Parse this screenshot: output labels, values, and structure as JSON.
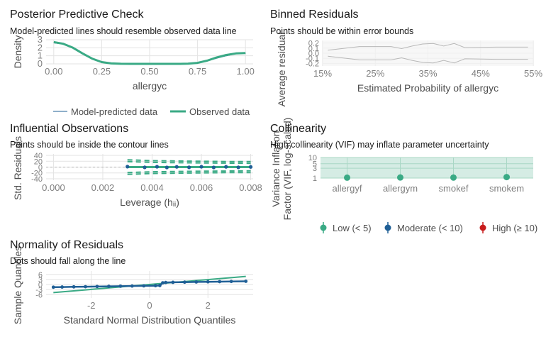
{
  "colors": {
    "green": "#3aaa85",
    "blue": "#1f5f96",
    "red": "#c81c1c",
    "grid": "#e3e3e3",
    "axis_text": "#7f7f7f",
    "title_text": "#1a1a1a",
    "vif_band": "#d5ece4",
    "vif_band_line": "#a9d7c5"
  },
  "panels": {
    "ppc": {
      "title": "Posterior Predictive Check",
      "subtitle": "Model-predicted lines should resemble observed data line",
      "xlabel": "allergyc",
      "ylabel": "Density",
      "legend": [
        "Model-predicted data",
        "Observed data"
      ]
    },
    "binned": {
      "title": "Binned Residuals",
      "subtitle": "Points should be within error bounds",
      "xlabel": "Estimated Probability of allergyc",
      "ylabel": "Average residual"
    },
    "influential": {
      "title": "Influential Observations",
      "subtitle": "Points should be inside the contour lines",
      "xlabel": "Leverage (hᵢᵢ)",
      "ylabel": "Std. Residuals"
    },
    "collinearity": {
      "title": "Collinearity",
      "subtitle": "High collinearity (VIF) may inflate parameter uncertainty",
      "ylabel_line1": "Variance Inflation",
      "ylabel_line2": "Factor (VIF, log-scaled)",
      "legend": [
        "Low (< 5)",
        "Moderate (< 10)",
        "High (≥ 10)"
      ]
    },
    "normality": {
      "title": "Normality of Residuals",
      "subtitle": "Dots should fall along the line",
      "xlabel": "Standard Normal Distribution Quantiles",
      "ylabel": "Sample Quantiles"
    }
  },
  "chart_data": [
    {
      "id": "ppc",
      "type": "line",
      "title": "Posterior Predictive Check",
      "subtitle": "Model-predicted lines should resemble observed data line",
      "xlabel": "allergyc",
      "ylabel": "Density",
      "xlim": [
        -0.04,
        1.04
      ],
      "ylim": [
        0,
        3
      ],
      "xticks": [
        0.0,
        0.25,
        0.5,
        0.75,
        1.0
      ],
      "xtick_labels": [
        "0.00",
        "0.25",
        "0.50",
        "0.75",
        "1.00"
      ],
      "yticks": [
        0,
        1,
        2,
        3
      ],
      "ytick_labels": [
        "0",
        "1",
        "2",
        "3"
      ],
      "grid": true,
      "legend_position": "bottom",
      "series": [
        {
          "name": "Model-predicted data",
          "color": "#1f5f96",
          "x": [
            0.0,
            0.05,
            0.1,
            0.15,
            0.2,
            0.25,
            0.3,
            0.35,
            0.4,
            0.45,
            0.5,
            0.55,
            0.6,
            0.65,
            0.7,
            0.75,
            0.8,
            0.85,
            0.9,
            0.95,
            1.0
          ],
          "y": [
            2.6,
            2.45,
            2.0,
            1.35,
            0.7,
            0.25,
            0.06,
            0.01,
            0.0,
            0.0,
            0.0,
            0.0,
            0.0,
            0.0,
            0.02,
            0.1,
            0.35,
            0.7,
            1.0,
            1.25,
            1.3
          ]
        },
        {
          "name": "Observed data",
          "color": "#3aaa85",
          "x": [
            0.0,
            0.05,
            0.1,
            0.15,
            0.2,
            0.25,
            0.3,
            0.35,
            0.4,
            0.45,
            0.5,
            0.55,
            0.6,
            0.65,
            0.7,
            0.75,
            0.8,
            0.85,
            0.9,
            0.95,
            1.0
          ],
          "y": [
            2.7,
            2.5,
            2.0,
            1.3,
            0.65,
            0.22,
            0.05,
            0.01,
            0.0,
            0.0,
            0.0,
            0.0,
            0.0,
            0.0,
            0.02,
            0.12,
            0.4,
            0.8,
            1.1,
            1.3,
            1.35
          ]
        }
      ]
    },
    {
      "id": "binned",
      "type": "line",
      "title": "Binned Residuals",
      "subtitle": "Points should be within error bounds",
      "xlabel": "Estimated Probability of allergyc",
      "ylabel": "Average residual",
      "xlim": [
        0.15,
        0.55
      ],
      "ylim": [
        -0.25,
        0.25
      ],
      "xticks": [
        0.15,
        0.25,
        0.35,
        0.45,
        0.55
      ],
      "xtick_labels": [
        "15%",
        "25%",
        "35%",
        "45%",
        "55%"
      ],
      "yticks": [
        -0.2,
        -0.1,
        0.0,
        0.1,
        0.2
      ],
      "ytick_labels": [
        "-0.2",
        "-0.1",
        "0.0",
        "0.1",
        "0.2"
      ],
      "grid": true,
      "series": [
        {
          "name": "upper bound",
          "color": "#b8b8b8",
          "x": [
            0.16,
            0.22,
            0.28,
            0.3,
            0.32,
            0.34,
            0.36,
            0.38,
            0.4,
            0.42,
            0.48,
            0.54
          ],
          "y": [
            0.06,
            0.13,
            0.13,
            0.09,
            0.14,
            0.18,
            0.19,
            0.14,
            0.19,
            0.11,
            0.12,
            0.12
          ]
        },
        {
          "name": "lower bound",
          "color": "#b8b8b8",
          "x": [
            0.16,
            0.22,
            0.28,
            0.3,
            0.32,
            0.34,
            0.36,
            0.38,
            0.4,
            0.42,
            0.48,
            0.54
          ],
          "y": [
            -0.06,
            -0.13,
            -0.13,
            -0.09,
            -0.14,
            -0.18,
            -0.19,
            -0.14,
            -0.19,
            -0.11,
            -0.12,
            -0.12
          ]
        }
      ]
    },
    {
      "id": "influential",
      "type": "scatter",
      "title": "Influential Observations",
      "subtitle": "Points should be inside the contour lines",
      "xlabel": "Leverage (hᵢᵢ)",
      "ylabel": "Std. Residuals",
      "xlim": [
        -0.0003,
        0.0081
      ],
      "ylim": [
        -45,
        45
      ],
      "xticks": [
        0.0,
        0.002,
        0.004,
        0.006,
        0.008
      ],
      "xtick_labels": [
        "0.000",
        "0.002",
        "0.004",
        "0.006",
        "0.008"
      ],
      "yticks": [
        -40,
        -20,
        0,
        20,
        40
      ],
      "ytick_labels": [
        "-40",
        "-20",
        "0",
        "20",
        "40"
      ],
      "grid": true,
      "points": {
        "color": "#1f5f96",
        "x": [
          0.003,
          0.0037,
          0.0042,
          0.0046,
          0.005,
          0.0055,
          0.006,
          0.0065,
          0.007,
          0.0075,
          0.008
        ],
        "y": [
          1.5,
          -1.0,
          1.2,
          -1.3,
          0.8,
          -0.9,
          1.1,
          -1.2,
          0.9,
          -1.0,
          0.6
        ]
      },
      "fit_line": {
        "color": "#3aaa85",
        "x": [
          0.003,
          0.008
        ],
        "y": [
          0,
          0
        ]
      },
      "contours": {
        "color": "#3aaa85",
        "x": [
          0.003,
          0.004,
          0.005,
          0.006,
          0.007,
          0.008
        ],
        "upper_outer": [
          25,
          22,
          21,
          20,
          19,
          19
        ],
        "upper_inner": [
          19,
          16,
          15,
          14,
          13.5,
          13
        ],
        "lower_inner": [
          -19,
          -16,
          -15,
          -14,
          -13.5,
          -13
        ],
        "lower_outer": [
          -25,
          -22,
          -21,
          -20,
          -19,
          -19
        ]
      }
    },
    {
      "id": "collinearity",
      "type": "scatter",
      "title": "Collinearity",
      "subtitle": "High collinearity (VIF) may inflate parameter uncertainty",
      "xlabel": "",
      "ylabel": "Variance Inflation Factor (VIF, log-scaled)",
      "yscale": "log",
      "ylim": [
        1,
        10
      ],
      "yticks": [
        1,
        3,
        5,
        10
      ],
      "ytick_labels": [
        "1",
        "3",
        "5",
        "10"
      ],
      "grid": true,
      "legend_position": "bottom",
      "categories": [
        "allergyf",
        "allergym",
        "smokef",
        "smokem"
      ],
      "values": [
        1.05,
        1.07,
        1.06,
        1.12
      ],
      "point_color": "#3aaa85",
      "legend": [
        {
          "name": "Low (< 5)",
          "color": "#3aaa85"
        },
        {
          "name": "Moderate (< 10)",
          "color": "#1f5f96"
        },
        {
          "name": "High (≥ 10)",
          "color": "#c81c1c"
        }
      ]
    },
    {
      "id": "normality",
      "type": "scatter",
      "title": "Normality of Residuals",
      "subtitle": "Dots should fall along the line",
      "xlabel": "Standard Normal Distribution Quantiles",
      "ylabel": "Sample Quantiles",
      "xlim": [
        -3.55,
        3.55
      ],
      "ylim": [
        -8,
        8
      ],
      "xticks": [
        -2,
        0,
        2
      ],
      "xtick_labels": [
        "-2",
        "0",
        "2"
      ],
      "yticks": [
        -6,
        -3,
        0,
        3,
        6
      ],
      "ytick_labels": [
        "-6",
        "-3",
        "0",
        "3",
        "6"
      ],
      "grid": true,
      "reference_line": {
        "color": "#3aaa85",
        "x": [
          -3.3,
          3.3
        ],
        "y": [
          -4.8,
          4.8
        ]
      },
      "points": {
        "color": "#1f5f96",
        "x": [
          -3.3,
          -3.0,
          -2.6,
          -2.2,
          -1.8,
          -1.4,
          -1.0,
          -0.6,
          -0.2,
          0.2,
          0.35,
          0.45,
          0.55,
          0.8,
          1.2,
          1.6,
          2.0,
          2.4,
          2.8,
          3.3
        ],
        "y": [
          -1.6,
          -1.5,
          -1.4,
          -1.3,
          -1.2,
          -1.1,
          -1.0,
          -0.9,
          -0.8,
          -0.7,
          -0.6,
          1.0,
          1.2,
          1.3,
          1.4,
          1.5,
          1.6,
          1.7,
          1.8,
          1.9
        ]
      }
    }
  ]
}
